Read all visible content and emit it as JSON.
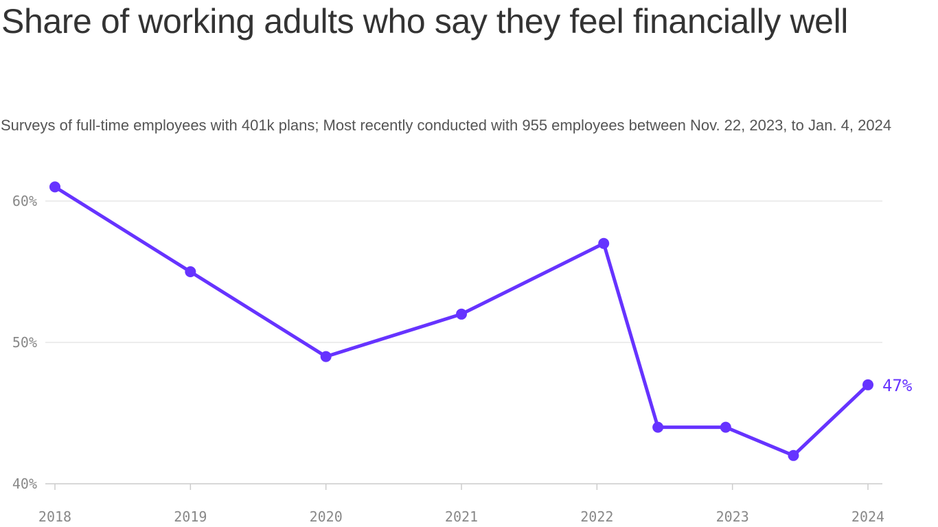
{
  "chart_data": {
    "type": "line",
    "title": "Share of working adults who say they feel financially well",
    "subtitle": "Surveys of full-time employees with 401k plans; Most recently conducted with 955 employees between Nov. 22, 2023, to Jan. 4, 2024",
    "xlabel": "",
    "ylabel": "",
    "x_ticks": [
      "2018",
      "2019",
      "2020",
      "2021",
      "2022",
      "2023",
      "2024"
    ],
    "y_ticks": [
      {
        "value": 40,
        "label": "40%"
      },
      {
        "value": 50,
        "label": "50%"
      },
      {
        "value": 60,
        "label": "60%"
      }
    ],
    "ylim": [
      40,
      61
    ],
    "xlim": [
      2018,
      2024
    ],
    "grid": true,
    "legend": "none",
    "series": [
      {
        "color": "#6633ff",
        "x": [
          2018.0,
          2019.0,
          2020.0,
          2021.0,
          2022.05,
          2022.45,
          2022.95,
          2023.45,
          2024.0
        ],
        "values": [
          61,
          55,
          49,
          52,
          57,
          44,
          44,
          42,
          47
        ]
      }
    ],
    "annotations": [
      {
        "text": "47%",
        "x": 2024.0,
        "y": 47
      }
    ]
  },
  "colors": {
    "line": "#6633ff",
    "grid": "#e2e2e2",
    "axis": "#cccccc",
    "tick_text": "#888888"
  }
}
